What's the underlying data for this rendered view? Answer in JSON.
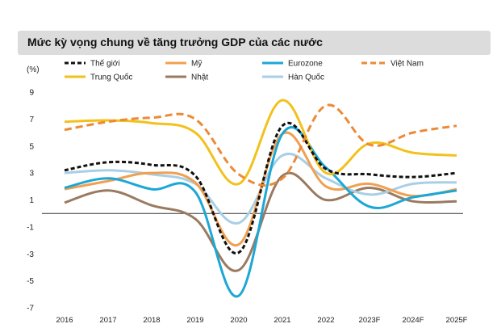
{
  "title": "Mức kỳ vọng chung về tăng trưởng GDP của các nước",
  "chart_data": {
    "type": "line",
    "title": "Mức kỳ vọng chung về tăng trưởng GDP của các nước",
    "ylabel": "(%)",
    "xlabel": "",
    "ylim": [
      -7,
      9
    ],
    "yticks": [
      9,
      7,
      5,
      3,
      1,
      -1,
      -3,
      -5,
      -7
    ],
    "yticklabels": [
      "9",
      "7",
      "5",
      "3",
      "1",
      "-1",
      "-3",
      "-5",
      "-7"
    ],
    "categories": [
      "2016",
      "2017",
      "2018",
      "2019",
      "2020",
      "2021",
      "2022",
      "2023F",
      "2024F",
      "2025F"
    ],
    "legend_position": "top",
    "series": [
      {
        "name": "Thế giới",
        "color": "#111111",
        "style": "dashed",
        "values": [
          3.2,
          3.8,
          3.6,
          2.8,
          -2.9,
          6.5,
          3.3,
          2.9,
          2.7,
          3.0
        ]
      },
      {
        "name": "Mỹ",
        "color": "#f0a050",
        "style": "solid",
        "values": [
          1.8,
          2.4,
          3.0,
          2.3,
          -2.3,
          5.9,
          2.0,
          2.2,
          1.3,
          1.8
        ]
      },
      {
        "name": "Eurozone",
        "color": "#1ca7d6",
        "style": "solid",
        "values": [
          1.9,
          2.6,
          1.8,
          1.6,
          -6.1,
          5.9,
          3.4,
          0.5,
          1.2,
          1.7
        ]
      },
      {
        "name": "Việt Nam",
        "color": "#ec8a36",
        "style": "dashed",
        "values": [
          6.2,
          6.8,
          7.1,
          7.0,
          2.9,
          2.6,
          8.0,
          5.1,
          6.0,
          6.5
        ]
      },
      {
        "name": "Trung Quốc",
        "color": "#f2c11c",
        "style": "solid",
        "values": [
          6.8,
          6.9,
          6.7,
          6.0,
          2.2,
          8.4,
          3.0,
          5.2,
          4.5,
          4.3
        ]
      },
      {
        "name": "Nhật",
        "color": "#9a7a60",
        "style": "solid",
        "values": [
          0.8,
          1.7,
          0.6,
          -0.4,
          -4.2,
          2.8,
          1.0,
          1.9,
          0.9,
          0.9
        ]
      },
      {
        "name": "Hàn Quốc",
        "color": "#a9cfe6",
        "style": "solid",
        "values": [
          3.0,
          3.2,
          2.9,
          2.2,
          -0.7,
          4.3,
          2.6,
          1.4,
          2.2,
          2.3
        ]
      }
    ]
  }
}
